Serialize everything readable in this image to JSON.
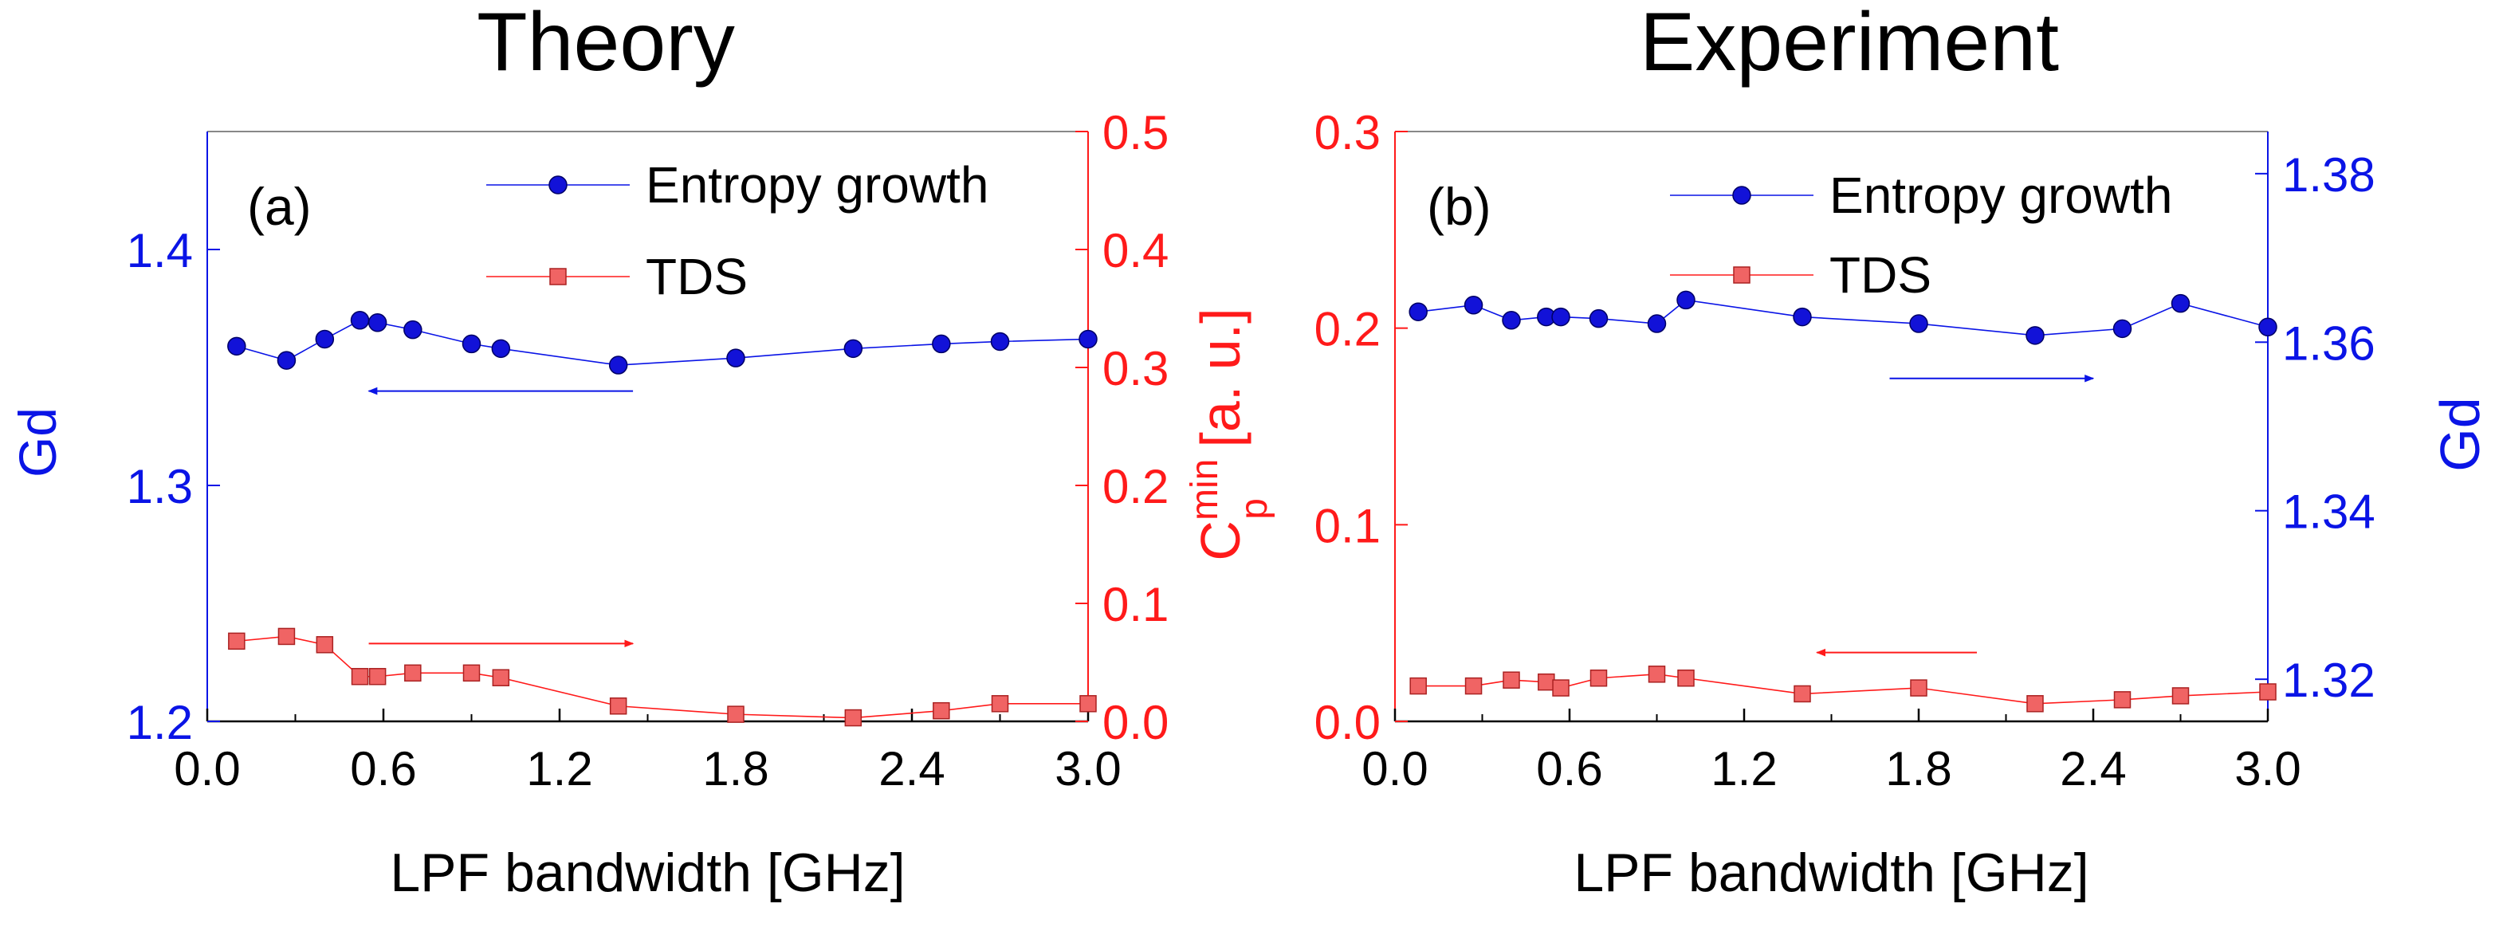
{
  "colors": {
    "blue": "#0a14e6",
    "red": "#ff1a1a",
    "blue_marker": "#1212d8",
    "red_marker": "#f06464",
    "axis": "#888888",
    "text": "#000000"
  },
  "xlabel": "LPF bandwidth [GHz]",
  "chart_data": [
    {
      "type": "line",
      "title": "Theory",
      "panel_label": "(a)",
      "xlabel": "LPF bandwidth [GHz]",
      "xlim": [
        0,
        3.0
      ],
      "xticks": [
        "0.0",
        "0.6",
        "1.2",
        "1.8",
        "2.4",
        "3.0"
      ],
      "left_axis": {
        "label": "Gd",
        "color": "blue",
        "lim": [
          1.2,
          1.45
        ],
        "ticks": [
          "1.2",
          "1.3",
          "1.4"
        ]
      },
      "right_axis": {
        "label_main": "C",
        "label_sup": "min",
        "label_sub": "p",
        "label_unit": " [a. u.]",
        "color": "red",
        "lim": [
          0.0,
          0.5
        ],
        "ticks": [
          "0.0",
          "0.1",
          "0.2",
          "0.3",
          "0.4",
          "0.5"
        ]
      },
      "series": [
        {
          "name": "Entropy growth",
          "axis": "left",
          "color": "blue",
          "marker": "circle",
          "x": [
            0.1,
            0.27,
            0.4,
            0.52,
            0.58,
            0.7,
            0.9,
            1.0,
            1.4,
            1.8,
            2.2,
            2.5,
            2.7,
            3.0
          ],
          "values": [
            1.359,
            1.353,
            1.362,
            1.37,
            1.369,
            1.366,
            1.36,
            1.358,
            1.351,
            1.354,
            1.358,
            1.36,
            1.361,
            1.362
          ]
        },
        {
          "name": "TDS",
          "axis": "right",
          "color": "red",
          "marker": "square",
          "x": [
            0.1,
            0.27,
            0.4,
            0.52,
            0.58,
            0.7,
            0.9,
            1.0,
            1.4,
            1.8,
            2.2,
            2.5,
            2.7,
            3.0
          ],
          "values": [
            0.068,
            0.072,
            0.065,
            0.038,
            0.038,
            0.041,
            0.041,
            0.037,
            0.013,
            0.006,
            0.003,
            0.009,
            0.015,
            0.015
          ]
        }
      ],
      "arrows": [
        {
          "points_to": "left",
          "color": "blue",
          "x_from": 1.45,
          "x_to": 0.55,
          "y": 1.34,
          "axis": "left"
        },
        {
          "points_to": "right",
          "color": "red",
          "x_from": 0.55,
          "x_to": 1.45,
          "y": 0.066,
          "axis": "right"
        }
      ]
    },
    {
      "type": "line",
      "title": "Experiment",
      "panel_label": "(b)",
      "xlabel": "LPF bandwidth [GHz]",
      "xlim": [
        0,
        3.0
      ],
      "xticks": [
        "0.0",
        "0.6",
        "1.2",
        "1.8",
        "2.4",
        "3.0"
      ],
      "left_axis": {
        "label": "",
        "color": "red",
        "lim": [
          0.0,
          0.3
        ],
        "ticks": [
          "0.0",
          "0.1",
          "0.2",
          "0.3"
        ]
      },
      "right_axis": {
        "label_main": "Gd",
        "label_sup": "",
        "label_sub": "",
        "label_unit": "",
        "color": "blue",
        "lim": [
          1.315,
          1.385
        ],
        "ticks": [
          "1.32",
          "1.34",
          "1.36",
          "1.38"
        ]
      },
      "series": [
        {
          "name": "Entropy growth",
          "axis": "right",
          "color": "blue",
          "marker": "circle",
          "x": [
            0.08,
            0.27,
            0.4,
            0.52,
            0.57,
            0.7,
            0.9,
            1.0,
            1.4,
            1.8,
            2.2,
            2.5,
            2.7,
            3.0
          ],
          "values": [
            1.3636,
            1.3644,
            1.3626,
            1.363,
            1.363,
            1.3628,
            1.3622,
            1.365,
            1.363,
            1.3622,
            1.3608,
            1.3616,
            1.3646,
            1.3618
          ]
        },
        {
          "name": "TDS",
          "axis": "left",
          "color": "red",
          "marker": "square",
          "x": [
            0.08,
            0.27,
            0.4,
            0.52,
            0.57,
            0.7,
            0.9,
            1.0,
            1.4,
            1.8,
            2.2,
            2.5,
            2.7,
            3.0
          ],
          "values": [
            0.018,
            0.018,
            0.021,
            0.02,
            0.017,
            0.022,
            0.024,
            0.022,
            0.014,
            0.017,
            0.009,
            0.011,
            0.013,
            0.015
          ]
        }
      ],
      "arrows": [
        {
          "points_to": "right",
          "color": "blue",
          "x_from": 1.7,
          "x_to": 2.4,
          "y": 1.3557,
          "axis": "right"
        },
        {
          "points_to": "left",
          "color": "red",
          "x_from": 2.0,
          "x_to": 1.45,
          "y": 0.035,
          "axis": "left"
        }
      ]
    }
  ]
}
